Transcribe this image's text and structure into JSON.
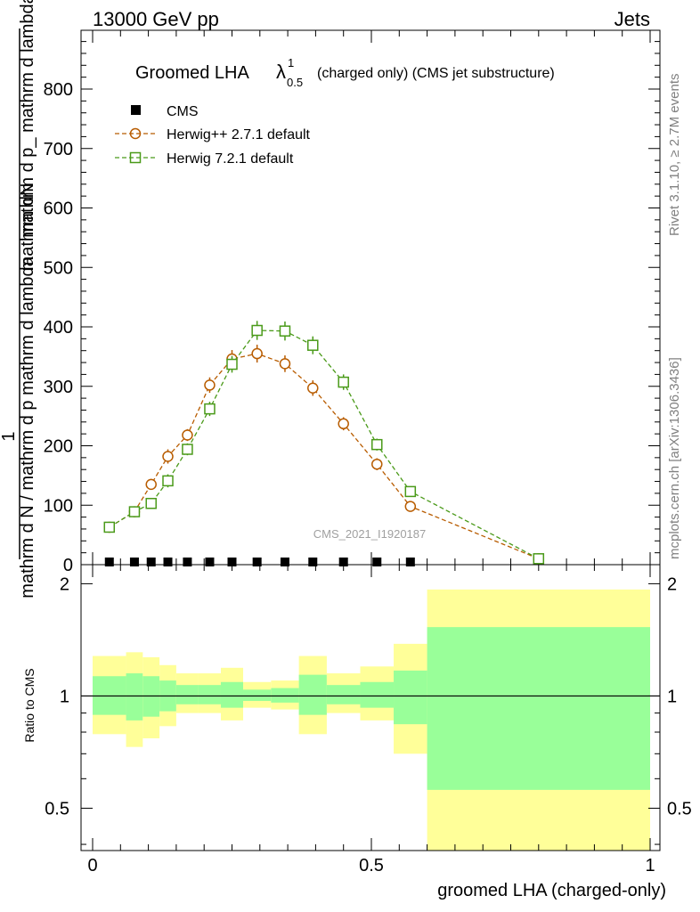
{
  "header": {
    "energy": "13000 GeV pp",
    "category": "Jets"
  },
  "side": {
    "rivet": "Rivet 3.1.10, ≥ 2.7M events",
    "mcplots": "mcplots.cern.ch [arXiv:1306.3436]"
  },
  "chart_data": [
    {
      "type": "line",
      "title_main": "Groomed LHA",
      "title_symbol": "λ",
      "title_sup": "1",
      "title_sub": "0.5",
      "title_rest": "(charged only) (CMS jet substructure)",
      "ylabel_top": "mathrm dN",
      "ylabel_mid1": "mathrm d p_ mathrm d lambda",
      "ylabel_mid2": "mathrm d N / mathrm d p mathrm d lambda",
      "ylabel_one": "1",
      "ylabel_bottom": "mathrm d N / mathrm d p_",
      "watermark": "CMS_2021_I1920187",
      "ylim": [
        0,
        900
      ],
      "xlim": [
        -0.02,
        1.0
      ],
      "yticks": [
        0,
        100,
        200,
        300,
        400,
        500,
        600,
        700,
        800
      ],
      "legend": [
        "CMS",
        "Herwig++ 2.7.1 default",
        "Herwig 7.2.1 default"
      ],
      "series": [
        {
          "name": "CMS",
          "color": "#000000",
          "marker": "filled-square",
          "x": [
            0.03,
            0.075,
            0.105,
            0.135,
            0.17,
            0.21,
            0.25,
            0.295,
            0.345,
            0.395,
            0.45,
            0.51,
            0.57
          ],
          "y": [
            0,
            0,
            0,
            0,
            0,
            0,
            0,
            0,
            0,
            0,
            0,
            0,
            0
          ]
        },
        {
          "name": "Herwig++ 2.7.1 default",
          "color": "#b85c00",
          "marker": "open-circle",
          "x": [
            0.03,
            0.075,
            0.105,
            0.135,
            0.17,
            0.21,
            0.25,
            0.295,
            0.345,
            0.395,
            0.45,
            0.51,
            0.57,
            0.8
          ],
          "y": [
            63,
            89,
            135,
            182,
            218,
            302,
            346,
            355,
            338,
            297,
            237,
            169,
            98,
            10
          ],
          "err": [
            5,
            6,
            9,
            12,
            10,
            13,
            15,
            15,
            14,
            13,
            11,
            10,
            7,
            2
          ]
        },
        {
          "name": "Herwig 7.2.1 default",
          "color": "#4a9a19",
          "marker": "open-square",
          "x": [
            0.03,
            0.075,
            0.105,
            0.135,
            0.17,
            0.21,
            0.25,
            0.295,
            0.345,
            0.395,
            0.45,
            0.51,
            0.57,
            0.8
          ],
          "y": [
            63,
            89,
            103,
            141,
            194,
            262,
            337,
            394,
            393,
            369,
            307,
            202,
            123,
            10
          ],
          "err": [
            5,
            6,
            8,
            11,
            10,
            12,
            14,
            16,
            16,
            15,
            13,
            10,
            7,
            2
          ]
        }
      ]
    },
    {
      "type": "area",
      "ylabel": "Ratio to CMS",
      "xlabel": "groomed LHA (charged-only)",
      "xlim": [
        -0.02,
        1.0
      ],
      "ylim_log": [
        0.385,
        2.25
      ],
      "yticks": [
        0.5,
        1,
        2
      ],
      "ytick_labels": [
        "0.5",
        "1",
        "2"
      ],
      "xticks": [
        0,
        0.5,
        1
      ],
      "xtick_labels": [
        "0",
        "0.5",
        "1"
      ],
      "ref_line": 1,
      "bands": {
        "edges": [
          0,
          0.06,
          0.09,
          0.12,
          0.15,
          0.19,
          0.23,
          0.27,
          0.32,
          0.37,
          0.42,
          0.48,
          0.54,
          0.6,
          1.0
        ],
        "yellow_lo": [
          0.79,
          0.73,
          0.77,
          0.83,
          0.9,
          0.9,
          0.86,
          0.93,
          0.92,
          0.79,
          0.9,
          0.86,
          0.7,
          0.36
        ],
        "yellow_hi": [
          1.28,
          1.31,
          1.27,
          1.21,
          1.15,
          1.15,
          1.19,
          1.09,
          1.1,
          1.28,
          1.15,
          1.2,
          1.38,
          1.93
        ],
        "green_lo": [
          0.89,
          0.86,
          0.88,
          0.91,
          0.95,
          0.95,
          0.93,
          0.97,
          0.96,
          0.89,
          0.95,
          0.93,
          0.84,
          0.56
        ],
        "green_hi": [
          1.13,
          1.15,
          1.13,
          1.1,
          1.07,
          1.07,
          1.09,
          1.04,
          1.05,
          1.14,
          1.07,
          1.09,
          1.17,
          1.53
        ]
      },
      "band_colors": {
        "yellow": "#ffff99",
        "green": "#99ff99"
      }
    }
  ]
}
